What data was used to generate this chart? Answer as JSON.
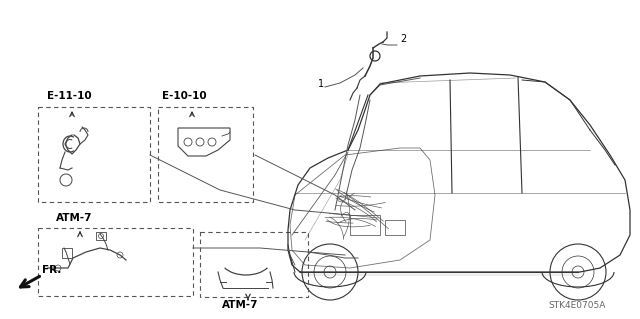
{
  "bg_color": "#ffffff",
  "fig_width": 6.4,
  "fig_height": 3.19,
  "labels": {
    "e11": "E-11-10",
    "e10": "E-10-10",
    "atm7_upper": "ATM-7",
    "atm7_lower": "ATM-7",
    "fr": "FR.",
    "num1": "1",
    "num2": "2",
    "diagram_code": "STK4E0705A"
  },
  "lc": "#333333",
  "bc": "#555555",
  "tc": "#000000"
}
